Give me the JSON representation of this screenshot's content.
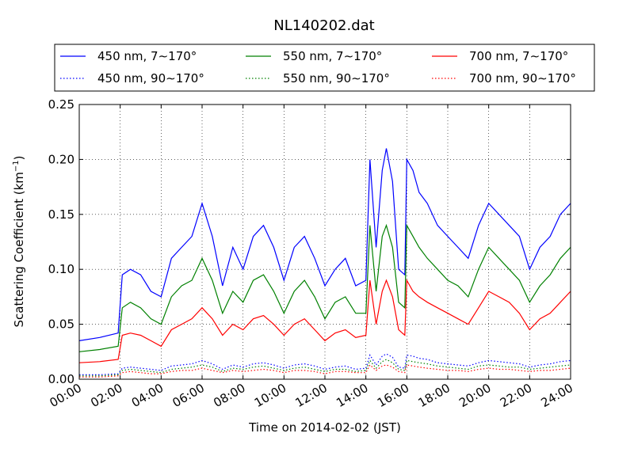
{
  "chart_data": {
    "type": "line",
    "title": "NL140202.dat",
    "xlabel": "Time on 2014-02-02 (JST)",
    "ylabel": "Scattering Coefficient (km",
    "ylabel_sup": "−1",
    "ylabel_end": ")",
    "xlim": [
      0,
      24
    ],
    "ylim": [
      0,
      0.25
    ],
    "grid": true,
    "legend_position": "top",
    "xticks": [
      {
        "v": 0,
        "label": "00:00"
      },
      {
        "v": 2,
        "label": "02:00"
      },
      {
        "v": 4,
        "label": "04:00"
      },
      {
        "v": 6,
        "label": "06:00"
      },
      {
        "v": 8,
        "label": "08:00"
      },
      {
        "v": 10,
        "label": "10:00"
      },
      {
        "v": 12,
        "label": "12:00"
      },
      {
        "v": 14,
        "label": "14:00"
      },
      {
        "v": 16,
        "label": "16:00"
      },
      {
        "v": 18,
        "label": "18:00"
      },
      {
        "v": 20,
        "label": "20:00"
      },
      {
        "v": 22,
        "label": "22:00"
      },
      {
        "v": 24,
        "label": "24:00"
      }
    ],
    "yticks": [
      {
        "v": 0,
        "label": "0.00"
      },
      {
        "v": 0.05,
        "label": "0.05"
      },
      {
        "v": 0.1,
        "label": "0.10"
      },
      {
        "v": 0.15,
        "label": "0.15"
      },
      {
        "v": 0.2,
        "label": "0.20"
      },
      {
        "v": 0.25,
        "label": "0.25"
      }
    ],
    "x": [
      0,
      1,
      1.9,
      2.1,
      2.5,
      3,
      3.5,
      4,
      4.5,
      5,
      5.5,
      6,
      6.5,
      7,
      7.5,
      8,
      8.5,
      9,
      9.5,
      10,
      10.5,
      11,
      11.5,
      12,
      12.5,
      13,
      13.5,
      14,
      14.2,
      14.5,
      14.8,
      15,
      15.3,
      15.6,
      15.9,
      16,
      16.3,
      16.6,
      17,
      17.5,
      18,
      18.5,
      19,
      19.5,
      20,
      20.5,
      21,
      21.5,
      22,
      22.5,
      23,
      23.5,
      24
    ],
    "series": [
      {
        "name": "450 nm, 7∼170°",
        "color": "#0000ff",
        "style": "solid",
        "values": [
          0.035,
          0.038,
          0.042,
          0.095,
          0.1,
          0.095,
          0.08,
          0.075,
          0.11,
          0.12,
          0.13,
          0.16,
          0.13,
          0.085,
          0.12,
          0.1,
          0.13,
          0.14,
          0.12,
          0.09,
          0.12,
          0.13,
          0.11,
          0.085,
          0.1,
          0.11,
          0.085,
          0.09,
          0.2,
          0.12,
          0.19,
          0.21,
          0.18,
          0.1,
          0.095,
          0.2,
          0.19,
          0.17,
          0.16,
          0.14,
          0.13,
          0.12,
          0.11,
          0.14,
          0.16,
          0.15,
          0.14,
          0.13,
          0.1,
          0.12,
          0.13,
          0.15,
          0.16
        ]
      },
      {
        "name": "550 nm, 7∼170°",
        "color": "#008000",
        "style": "solid",
        "values": [
          0.025,
          0.027,
          0.03,
          0.065,
          0.07,
          0.065,
          0.055,
          0.05,
          0.075,
          0.085,
          0.09,
          0.11,
          0.09,
          0.06,
          0.08,
          0.07,
          0.09,
          0.095,
          0.08,
          0.06,
          0.08,
          0.09,
          0.075,
          0.055,
          0.07,
          0.075,
          0.06,
          0.06,
          0.14,
          0.08,
          0.13,
          0.14,
          0.12,
          0.07,
          0.065,
          0.14,
          0.13,
          0.12,
          0.11,
          0.1,
          0.09,
          0.085,
          0.075,
          0.1,
          0.12,
          0.11,
          0.1,
          0.09,
          0.07,
          0.085,
          0.095,
          0.11,
          0.12
        ]
      },
      {
        "name": "700 nm, 7∼170°",
        "color": "#ff0000",
        "style": "solid",
        "values": [
          0.015,
          0.016,
          0.018,
          0.04,
          0.042,
          0.04,
          0.035,
          0.03,
          0.045,
          0.05,
          0.055,
          0.065,
          0.055,
          0.04,
          0.05,
          0.045,
          0.055,
          0.058,
          0.05,
          0.04,
          0.05,
          0.055,
          0.045,
          0.035,
          0.042,
          0.045,
          0.038,
          0.04,
          0.09,
          0.05,
          0.08,
          0.09,
          0.075,
          0.045,
          0.04,
          0.09,
          0.08,
          0.075,
          0.07,
          0.065,
          0.06,
          0.055,
          0.05,
          0.065,
          0.08,
          0.075,
          0.07,
          0.06,
          0.045,
          0.055,
          0.06,
          0.07,
          0.08
        ]
      },
      {
        "name": "450 nm, 90∼170°",
        "color": "#0000ff",
        "style": "dotted",
        "values": [
          0.004,
          0.004,
          0.005,
          0.01,
          0.011,
          0.01,
          0.009,
          0.008,
          0.012,
          0.013,
          0.014,
          0.017,
          0.014,
          0.009,
          0.013,
          0.011,
          0.014,
          0.015,
          0.013,
          0.01,
          0.013,
          0.014,
          0.012,
          0.009,
          0.011,
          0.012,
          0.009,
          0.01,
          0.022,
          0.013,
          0.021,
          0.023,
          0.02,
          0.011,
          0.01,
          0.022,
          0.021,
          0.019,
          0.018,
          0.015,
          0.014,
          0.013,
          0.012,
          0.015,
          0.017,
          0.016,
          0.015,
          0.014,
          0.011,
          0.013,
          0.014,
          0.016,
          0.017
        ]
      },
      {
        "name": "550 nm, 90∼170°",
        "color": "#008000",
        "style": "dotted",
        "values": [
          0.003,
          0.003,
          0.004,
          0.008,
          0.009,
          0.008,
          0.007,
          0.006,
          0.009,
          0.01,
          0.011,
          0.013,
          0.011,
          0.007,
          0.01,
          0.009,
          0.011,
          0.012,
          0.01,
          0.008,
          0.01,
          0.011,
          0.009,
          0.007,
          0.009,
          0.009,
          0.007,
          0.008,
          0.017,
          0.01,
          0.016,
          0.018,
          0.015,
          0.009,
          0.008,
          0.017,
          0.016,
          0.015,
          0.014,
          0.012,
          0.011,
          0.01,
          0.009,
          0.012,
          0.013,
          0.012,
          0.011,
          0.011,
          0.009,
          0.01,
          0.011,
          0.012,
          0.013
        ]
      },
      {
        "name": "700 nm, 90∼170°",
        "color": "#ff0000",
        "style": "dotted",
        "values": [
          0.002,
          0.002,
          0.003,
          0.006,
          0.007,
          0.006,
          0.005,
          0.005,
          0.007,
          0.008,
          0.008,
          0.01,
          0.008,
          0.006,
          0.008,
          0.007,
          0.008,
          0.009,
          0.008,
          0.006,
          0.008,
          0.008,
          0.007,
          0.005,
          0.007,
          0.007,
          0.006,
          0.006,
          0.013,
          0.008,
          0.012,
          0.013,
          0.011,
          0.007,
          0.006,
          0.013,
          0.012,
          0.011,
          0.01,
          0.009,
          0.008,
          0.008,
          0.007,
          0.009,
          0.01,
          0.009,
          0.009,
          0.008,
          0.007,
          0.008,
          0.008,
          0.009,
          0.01
        ]
      }
    ]
  }
}
